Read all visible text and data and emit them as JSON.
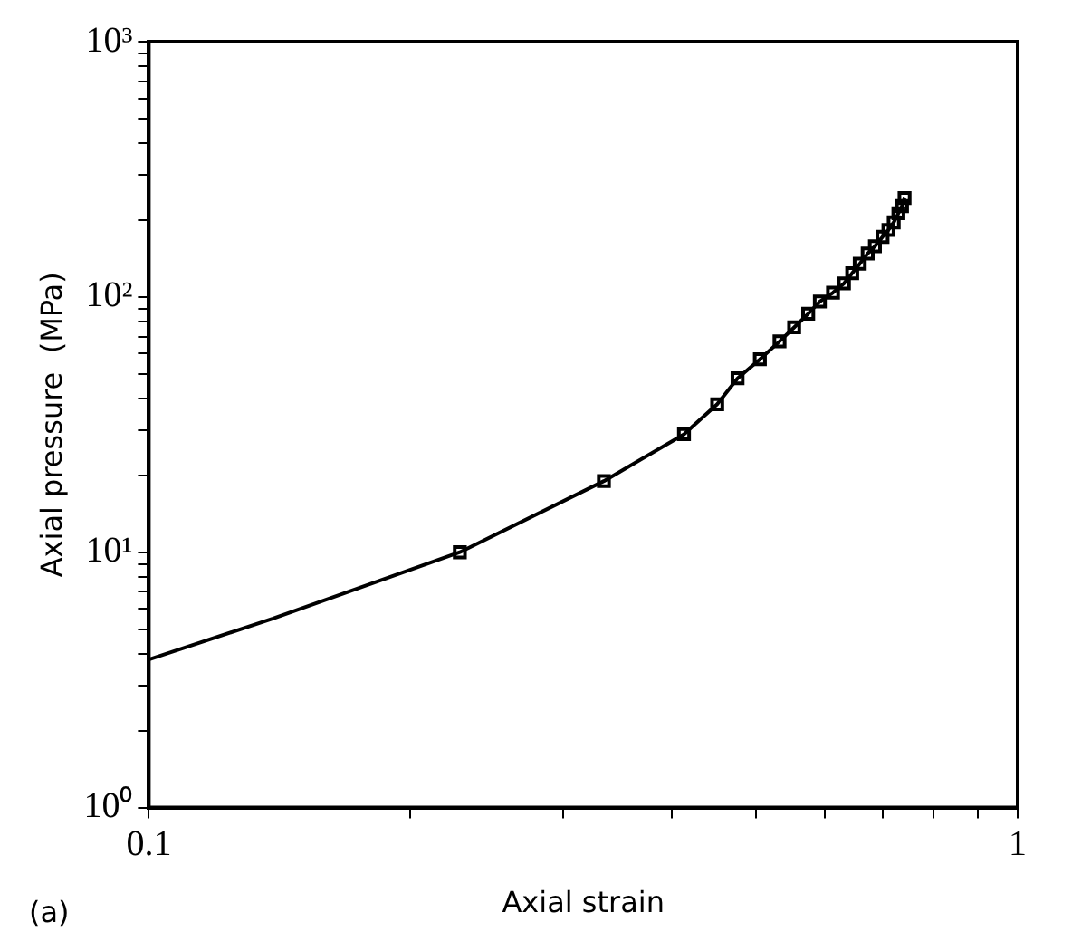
{
  "chart_data": {
    "type": "line",
    "xlabel": "Axial strain",
    "ylabel": "Axial pressure  (MPa)",
    "annotations": [
      "(a)"
    ],
    "log": "xy",
    "xlim": [
      0.1,
      1
    ],
    "ylim": [
      1,
      1000
    ],
    "xticks": [
      0.1,
      {
        "value": 0.2,
        "label": null
      },
      {
        "value": 0.3,
        "label": null
      },
      {
        "value": 0.4,
        "label": null
      },
      {
        "value": 0.5,
        "label": null
      },
      {
        "value": 0.6,
        "label": null
      },
      {
        "value": 0.7,
        "label": null
      },
      {
        "value": 0.8,
        "label": null
      },
      {
        "value": 0.9,
        "label": null
      },
      1
    ],
    "yticks": [
      {
        "value": 1,
        "label": "10⁰"
      },
      {
        "value": 2,
        "label": null
      },
      {
        "value": 3,
        "label": null
      },
      {
        "value": 4,
        "label": null
      },
      {
        "value": 5,
        "label": null
      },
      {
        "value": 6,
        "label": null
      },
      {
        "value": 7,
        "label": null
      },
      {
        "value": 8,
        "label": null
      },
      {
        "value": 9,
        "label": null
      },
      {
        "value": 10,
        "label": "10¹"
      },
      {
        "value": 20,
        "label": null
      },
      {
        "value": 30,
        "label": null
      },
      {
        "value": 40,
        "label": null
      },
      {
        "value": 50,
        "label": null
      },
      {
        "value": 60,
        "label": null
      },
      {
        "value": 70,
        "label": null
      },
      {
        "value": 80,
        "label": null
      },
      {
        "value": 90,
        "label": null
      },
      {
        "value": 100,
        "label": "10²"
      },
      {
        "value": 200,
        "label": null
      },
      {
        "value": 300,
        "label": null
      },
      {
        "value": 400,
        "label": null
      },
      {
        "value": 500,
        "label": null
      },
      {
        "value": 600,
        "label": null
      },
      {
        "value": 700,
        "label": null
      },
      {
        "value": 800,
        "label": null
      },
      {
        "value": 900,
        "label": null
      },
      {
        "value": 1000,
        "label": "10³"
      }
    ],
    "line_style": "solid",
    "series": [
      {
        "type": "line",
        "marker": "none",
        "color": "#000000",
        "x": [
          0.1,
          0.139,
          0.228,
          0.334,
          0.413,
          0.451,
          0.476,
          0.505,
          0.532,
          0.553,
          0.574,
          0.592,
          0.613,
          0.631,
          0.645,
          0.658,
          0.672,
          0.685,
          0.699,
          0.71,
          0.72,
          0.729,
          0.736,
          0.741
        ],
        "values": [
          3.8,
          5.5,
          10,
          19,
          29,
          38,
          48,
          57,
          67,
          76,
          86,
          96,
          104,
          113,
          124,
          135,
          148,
          158,
          172,
          183,
          196,
          213,
          227,
          244
        ]
      },
      {
        "type": "scatter",
        "marker": "square",
        "color": "#000000",
        "x": [
          0.228,
          0.334,
          0.413,
          0.451,
          0.476,
          0.505,
          0.532,
          0.553,
          0.574,
          0.592,
          0.613,
          0.631,
          0.645,
          0.658,
          0.672,
          0.685,
          0.699,
          0.71,
          0.72,
          0.729,
          0.736,
          0.741
        ],
        "values": [
          10,
          19,
          29,
          38,
          48,
          57,
          67,
          76,
          86,
          96,
          104,
          113,
          124,
          135,
          148,
          158,
          172,
          183,
          196,
          213,
          227,
          244
        ]
      }
    ]
  }
}
